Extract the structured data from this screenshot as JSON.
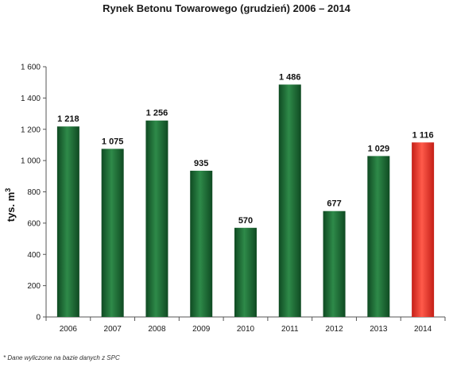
{
  "chart_data": {
    "type": "bar",
    "title": "Rynek Betonu  Towarowego (grudzień) 2006 – 2014",
    "ylabel": "tys. m",
    "ylabel_sup": "3",
    "xlabel": "",
    "categories": [
      "2006",
      "2007",
      "2008",
      "2009",
      "2010",
      "2011",
      "2012",
      "2013",
      "2014"
    ],
    "values": [
      1218,
      1075,
      1256,
      935,
      570,
      1486,
      677,
      1029,
      1116
    ],
    "value_labels": [
      "1 218",
      "1 075",
      "1 256",
      "935",
      "570",
      "1 486",
      "677",
      "1 029",
      "1 116"
    ],
    "ylim": [
      0,
      1600
    ],
    "yticks": [
      0,
      200,
      400,
      600,
      800,
      1000,
      1200,
      1400,
      1600
    ],
    "ytick_labels": [
      "0",
      "200",
      "400",
      "600",
      "800",
      "1 000",
      "1 200",
      "1 400",
      "1 600"
    ],
    "grid": false,
    "bar_colors": [
      "#1e6b35",
      "#1e6b35",
      "#1e6b35",
      "#1e6b35",
      "#1e6b35",
      "#1e6b35",
      "#1e6b35",
      "#1e6b35",
      "#e8352a"
    ],
    "footnote": "* Dane wyliczone na bazie danych z SPC"
  }
}
